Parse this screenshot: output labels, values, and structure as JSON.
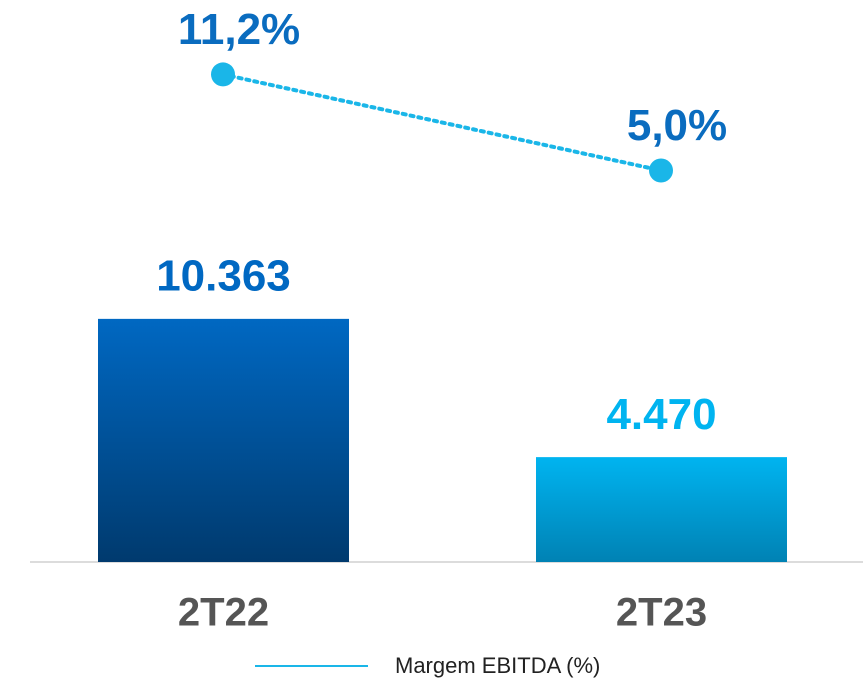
{
  "chart_data": {
    "type": "bar",
    "categories": [
      "2T22",
      "2T23"
    ],
    "series": [
      {
        "type": "bar",
        "colors": [
          "#0068c2",
          "#00b4f0"
        ],
        "values": [
          10363,
          4470
        ],
        "value_labels": [
          "10.363",
          "4.470"
        ]
      },
      {
        "type": "line",
        "name": "Margem EBITDA (%)",
        "axis": "y2",
        "color": "#1ab6e8",
        "label_color": "#0a6cbf",
        "values": [
          11.2,
          5.0
        ],
        "value_labels": [
          "11,2%",
          "5,0%"
        ]
      }
    ],
    "ylim": [
      0,
      13000
    ],
    "y2lim": [
      0,
      16
    ]
  }
}
